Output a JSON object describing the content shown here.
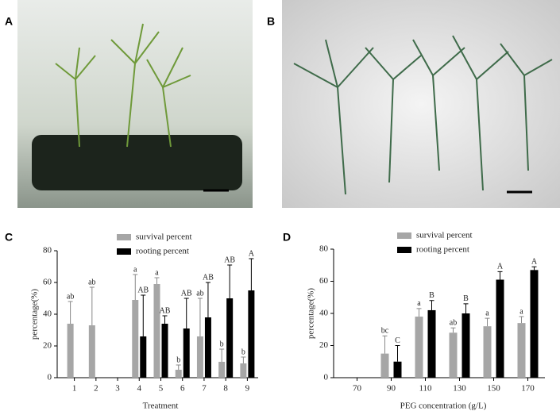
{
  "panels": [
    {
      "label": "A"
    },
    {
      "label": "B"
    }
  ],
  "chart_data": [
    {
      "type": "bar",
      "label": "C",
      "x_label": "Treatment",
      "y_label": "percentage(%)",
      "categories": [
        "1",
        "2",
        "3",
        "4",
        "5",
        "6",
        "7",
        "8",
        "9"
      ],
      "ylim": [
        0,
        80
      ],
      "yticks": [
        0,
        20,
        40,
        60,
        80
      ],
      "series": [
        {
          "name": "survival percent",
          "color": "#a6a6a6",
          "values": [
            34,
            33,
            null,
            49,
            59,
            5,
            26,
            10,
            9
          ],
          "errors": [
            14,
            24,
            null,
            16,
            4,
            3,
            24,
            8,
            4
          ],
          "letters": [
            "ab",
            "ab",
            null,
            "a",
            "a",
            "b",
            "ab",
            "b",
            "b"
          ]
        },
        {
          "name": "rooting percent",
          "color": "#000000",
          "values": [
            null,
            null,
            null,
            26,
            34,
            31,
            38,
            50,
            55
          ],
          "errors": [
            null,
            null,
            null,
            26,
            5,
            19,
            22,
            21,
            20
          ],
          "letters": [
            null,
            null,
            null,
            "AB",
            "AB",
            "AB",
            "AB",
            "AB",
            "A"
          ]
        }
      ]
    },
    {
      "type": "bar",
      "label": "D",
      "x_label": "PEG concentration (g/L)",
      "y_label": "percentage(%)",
      "categories": [
        "70",
        "90",
        "110",
        "130",
        "150",
        "170"
      ],
      "ylim": [
        0,
        80
      ],
      "yticks": [
        0,
        20,
        40,
        60,
        80
      ],
      "series": [
        {
          "name": "survival percent",
          "color": "#a6a6a6",
          "values": [
            null,
            15,
            38,
            28,
            32,
            34
          ],
          "errors": [
            null,
            11,
            5,
            3,
            5,
            4
          ],
          "letters": [
            null,
            "bc",
            "a",
            "ab",
            "a",
            "a"
          ]
        },
        {
          "name": "rooting percent",
          "color": "#000000",
          "values": [
            null,
            10,
            42,
            40,
            61,
            67
          ],
          "errors": [
            null,
            10,
            6,
            6,
            5,
            2
          ],
          "letters": [
            null,
            "C",
            "B",
            "B",
            "A",
            "A"
          ]
        }
      ]
    }
  ]
}
